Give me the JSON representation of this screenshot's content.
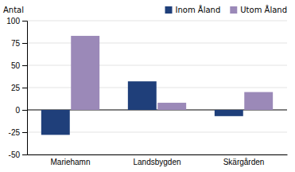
{
  "chart_data": {
    "type": "bar",
    "ylabel": "Antal",
    "categories": [
      "Mariehamn",
      "Landsbygden",
      "Skärgården"
    ],
    "series": [
      {
        "name": "Inom Åland",
        "color": "#1f3f7a",
        "values": [
          -28,
          32,
          -7
        ]
      },
      {
        "name": "Utom Åland",
        "color": "#9b89b8",
        "values": [
          83,
          8,
          20
        ]
      }
    ],
    "ylim": [
      -50,
      100
    ],
    "yticks": [
      -50,
      -25,
      0,
      25,
      50,
      75,
      100
    ],
    "grid": true,
    "legend": "upper right"
  }
}
